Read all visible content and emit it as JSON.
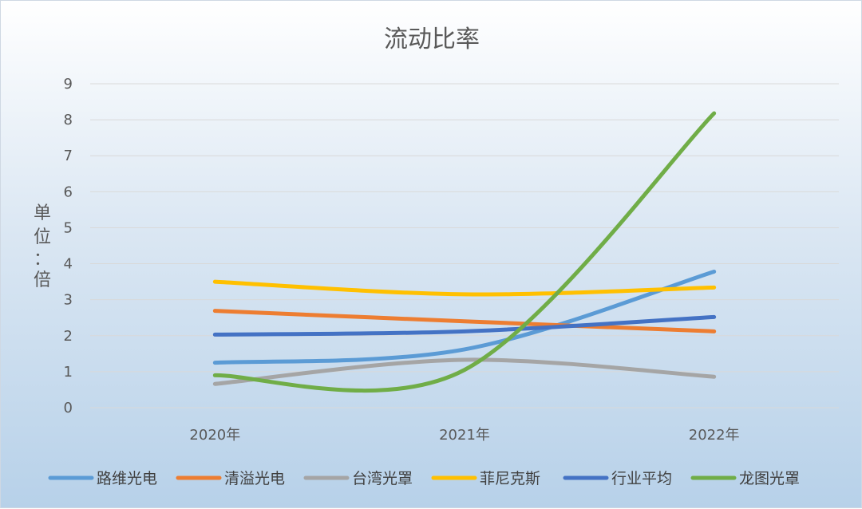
{
  "chart_data": {
    "type": "line",
    "title": "流动比率",
    "ylabel_chars": [
      "单",
      "位",
      "：",
      "倍"
    ],
    "categories": [
      "2020年",
      "2021年",
      "2022年"
    ],
    "ylim": [
      0,
      9
    ],
    "yticks": [
      "0",
      "1",
      "2",
      "3",
      "4",
      "5",
      "6",
      "7",
      "8",
      "9"
    ],
    "grid": true,
    "smooth": true,
    "legend_position": "bottom",
    "series": [
      {
        "name": "路维光电",
        "color": "#5b9bd5",
        "values": [
          1.25,
          1.62,
          3.78
        ]
      },
      {
        "name": "清溢光电",
        "color": "#ed7d31",
        "values": [
          2.69,
          2.4,
          2.12
        ]
      },
      {
        "name": "台湾光罩",
        "color": "#a5a5a5",
        "values": [
          0.66,
          1.33,
          0.86
        ]
      },
      {
        "name": "菲尼克斯",
        "color": "#ffc000",
        "values": [
          3.5,
          3.15,
          3.34
        ]
      },
      {
        "name": "行业平均",
        "color": "#4472c4",
        "values": [
          2.03,
          2.12,
          2.52
        ]
      },
      {
        "name": "龙图光罩",
        "color": "#70ad47",
        "values": [
          0.9,
          1.05,
          8.18
        ]
      }
    ]
  }
}
